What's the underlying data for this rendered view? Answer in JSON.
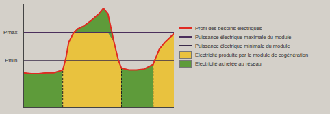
{
  "chart_data": {
    "type": "area",
    "x": [
      0,
      5,
      10,
      15,
      20,
      26,
      26,
      28,
      30,
      33,
      36,
      40,
      45,
      50,
      53,
      56,
      60,
      63,
      65,
      65,
      70,
      75,
      80,
      86,
      86,
      90,
      94,
      100
    ],
    "series": [
      {
        "name": "Profil des besoins électriques",
        "type": "line",
        "color": "#e02a22",
        "values": [
          37,
          36,
          36,
          37,
          37,
          40,
          40,
          52,
          70,
          79,
          84,
          87,
          93,
          100,
          106,
          100,
          70,
          50,
          42,
          42,
          40,
          40,
          41,
          46,
          46,
          62,
          70,
          79
        ]
      },
      {
        "name": "Puissance électrique maximale du module",
        "type": "line",
        "color": "#4b2f5c",
        "values": [
          80,
          80,
          80,
          80,
          80,
          80,
          80,
          80,
          80,
          80,
          80,
          80,
          80,
          80,
          80,
          80,
          80,
          80,
          80,
          80,
          80,
          80,
          80,
          80,
          80,
          80,
          80,
          80
        ]
      },
      {
        "name": "Puissance électrique minimale du module",
        "type": "line",
        "color": "#3b2c4a",
        "values": [
          50,
          50,
          50,
          50,
          50,
          50,
          50,
          50,
          50,
          50,
          50,
          50,
          50,
          50,
          50,
          50,
          50,
          50,
          50,
          50,
          50,
          50,
          50,
          50,
          50,
          50,
          50,
          50
        ]
      },
      {
        "name": "Electricité produite par le module de cogénération",
        "type": "area",
        "color": "#e9c23e",
        "values": [
          0,
          0,
          0,
          0,
          0,
          0,
          40,
          52,
          70,
          79,
          80,
          80,
          80,
          80,
          80,
          80,
          70,
          50,
          42,
          0,
          0,
          0,
          0,
          0,
          46,
          62,
          70,
          79
        ]
      },
      {
        "name": "Electricité achetée au réseau",
        "type": "area",
        "color": "#5e9b3a",
        "values": [
          37,
          36,
          36,
          37,
          37,
          40,
          0,
          0,
          0,
          0,
          4,
          7,
          13,
          20,
          26,
          20,
          0,
          0,
          0,
          42,
          40,
          40,
          41,
          46,
          0,
          0,
          0,
          0
        ]
      }
    ],
    "stacked": true,
    "xlim": [
      0,
      100
    ],
    "xticks": [],
    "ylim": [
      0,
      110
    ],
    "yticks": [
      {
        "value": 50,
        "label": "Pmin"
      },
      {
        "value": 80,
        "label": "Pmax"
      }
    ],
    "tick_labels": "y",
    "legend": "right"
  }
}
